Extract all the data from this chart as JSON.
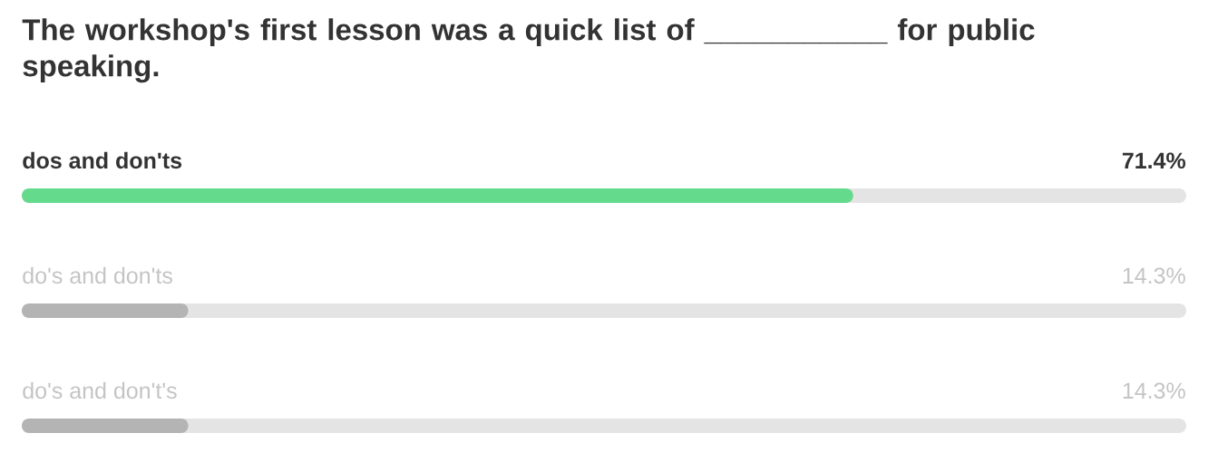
{
  "chart_data": {
    "type": "bar",
    "orientation": "horizontal",
    "title": "The workshop's first lesson was a quick list of ___________ for public speaking.",
    "categories": [
      "dos and don'ts",
      "do's and don'ts",
      "do's and don't's"
    ],
    "values": [
      71.4,
      14.3,
      14.3
    ],
    "value_labels": [
      "71.4%",
      "14.3%",
      "14.3%"
    ],
    "colors": [
      "#64da8c",
      "#b4b4b4",
      "#b4b4b4"
    ],
    "xlim": [
      0,
      100
    ],
    "tick_labels": false
  }
}
